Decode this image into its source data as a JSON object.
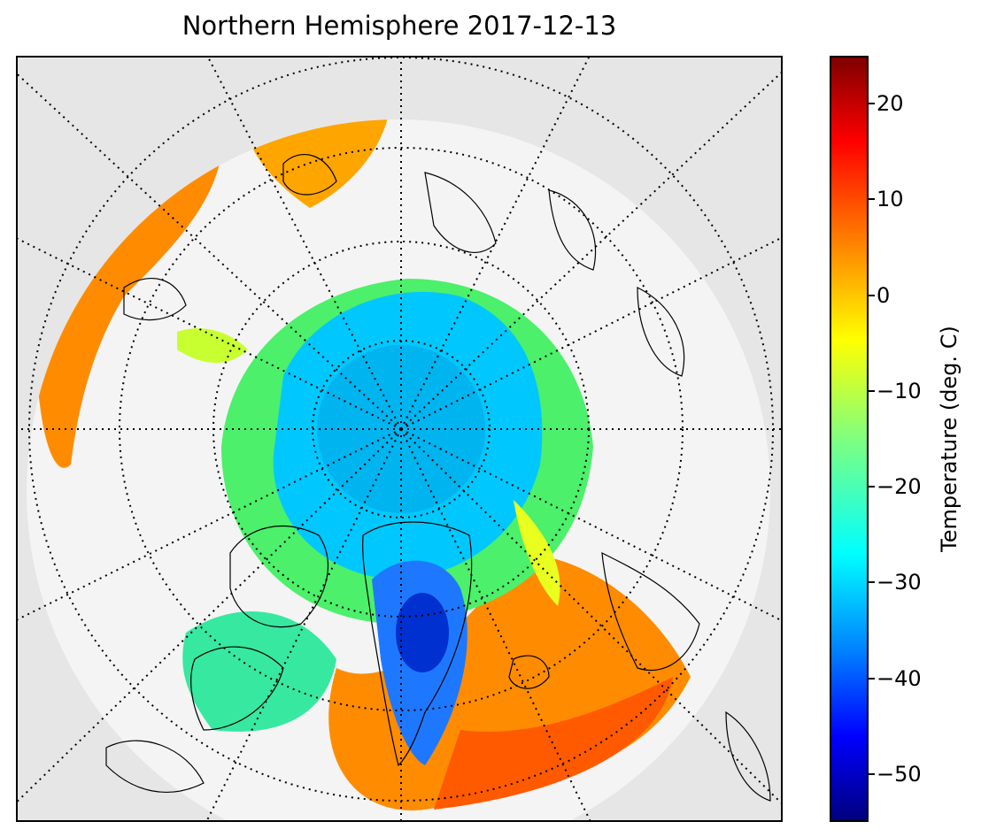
{
  "title": "Northern Hemisphere 2017-12-13",
  "colorbar": {
    "label": "Temperature (deg. C)",
    "ticks": [
      "20",
      "10",
      "0",
      "−10",
      "−20",
      "−30",
      "−40",
      "−50"
    ],
    "range": [
      -55,
      25
    ]
  },
  "colors": {
    "background": "#e6e6e6",
    "cold": "#00007f",
    "warm": "#7f0000"
  }
}
